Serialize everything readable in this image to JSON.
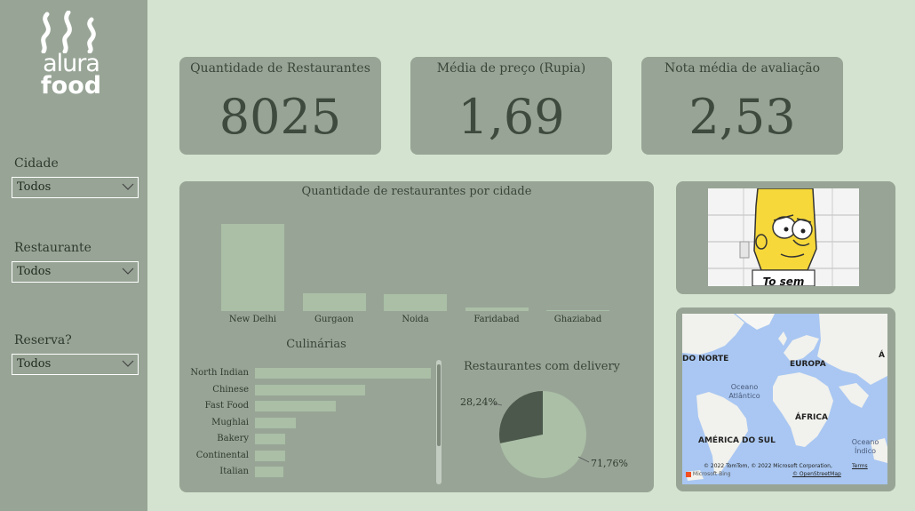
{
  "logo": {
    "line1": "alura",
    "line2": "food"
  },
  "filters": [
    {
      "label": "Cidade",
      "value": "Todos"
    },
    {
      "label": "Restaurante",
      "value": "Todos"
    },
    {
      "label": "Reserva?",
      "value": "Todos"
    }
  ],
  "kpis": [
    {
      "title": "Quantidade de Restaurantes",
      "value": "8025"
    },
    {
      "title": "Média de preço (Rupia)",
      "value": "1,69"
    },
    {
      "title": "Nota média de avaliação",
      "value": "2,53"
    }
  ],
  "charts": {
    "cities_title": "Quantidade de restaurantes por cidade",
    "cuisines_title": "Culinárias",
    "delivery_title": "Restaurantes com delivery",
    "delivery_labels": [
      "28,24%",
      "71,76%"
    ]
  },
  "image_caption": "To sem",
  "map": {
    "labels": [
      "DO NORTE",
      "EUROPA",
      "Á",
      "Oceano",
      "Atlântico",
      "ÁFRICA",
      "AMÉRICA DO SUL",
      "Oceano",
      "Índico"
    ],
    "credit": "© 2022 TomTom, © 2022 Microsoft Corporation,",
    "terms": "Terms",
    "osm": "© OpenStreetMap",
    "brand": "Microsoft Bing"
  },
  "colors": {
    "background": "#d3e3cf",
    "panel": "#98a596",
    "bar": "#aabfa6",
    "pie_dark": "#4b584b"
  },
  "chart_data": [
    {
      "type": "bar",
      "title": "Quantidade de restaurantes por cidade",
      "categories": [
        "New Delhi",
        "Gurgaon",
        "Noida",
        "Faridabad",
        "Ghaziabad"
      ],
      "values": [
        5473,
        1118,
        1080,
        251,
        25
      ],
      "ylim": [
        0,
        5500
      ],
      "grid": false
    },
    {
      "type": "bar",
      "orientation": "horizontal",
      "title": "Culinárias",
      "categories": [
        "North Indian",
        "Chinese",
        "Fast Food",
        "Mughlai",
        "Bakery",
        "Continental",
        "Italian"
      ],
      "values": [
        2990,
        1880,
        1370,
        690,
        520,
        510,
        490
      ]
    },
    {
      "type": "pie",
      "title": "Restaurantes com delivery",
      "labels": [
        "28,24%",
        "71,76%"
      ],
      "values": [
        28.24,
        71.76
      ],
      "colors": [
        "#4b584b",
        "#aabfa6"
      ]
    }
  ]
}
